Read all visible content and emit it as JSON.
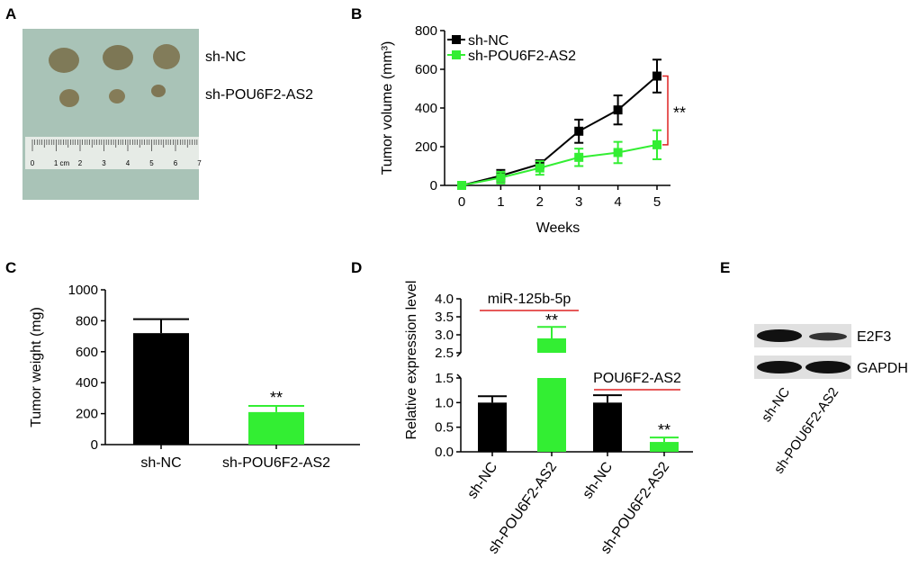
{
  "colors": {
    "black": "#000000",
    "green": "#33ee33",
    "red": "#dd2222",
    "photo_bg": "#a8c4b8"
  },
  "panels": {
    "A": {
      "letter": "A",
      "labels": [
        "sh-NC",
        "sh-POU6F2-AS2"
      ],
      "ruler_numbers": [
        "0",
        "1 cm",
        "2",
        "3",
        "4",
        "5",
        "6",
        "7"
      ]
    },
    "E": {
      "letter": "E",
      "bands": [
        "E2F3",
        "GAPDH"
      ],
      "lanes": [
        "sh-NC",
        "sh-POU6F2-AS2"
      ]
    }
  },
  "chart_data": [
    {
      "panel": "B",
      "type": "line",
      "xlabel": "Weeks",
      "ylabel": "Tumor volume (mm³)",
      "x": [
        0,
        1,
        2,
        3,
        4,
        5
      ],
      "xticks": [
        "0",
        "1",
        "2",
        "3",
        "4",
        "5"
      ],
      "ylim": [
        0,
        800
      ],
      "yticks": [
        "0",
        "200",
        "400",
        "600",
        "800"
      ],
      "legend_position": "top-left",
      "series": [
        {
          "name": "sh-NC",
          "color": "#000000",
          "marker": "square",
          "values": [
            0,
            50,
            110,
            280,
            390,
            565
          ],
          "errors": [
            0,
            30,
            20,
            60,
            75,
            85
          ]
        },
        {
          "name": "sh-POU6F2-AS2",
          "color": "#33ee33",
          "marker": "square",
          "values": [
            0,
            40,
            90,
            145,
            170,
            210
          ],
          "errors": [
            0,
            30,
            35,
            45,
            55,
            75
          ]
        }
      ],
      "significance": "**"
    },
    {
      "panel": "C",
      "type": "bar",
      "ylabel": "Tumor weight (mg)",
      "categories": [
        "sh-NC",
        "sh-POU6F2-AS2"
      ],
      "values": [
        720,
        210
      ],
      "errors": [
        90,
        40
      ],
      "colors": [
        "#000000",
        "#33ee33"
      ],
      "ylim": [
        0,
        1000
      ],
      "yticks": [
        "0",
        "200",
        "400",
        "600",
        "800",
        "1000"
      ],
      "significance": "**"
    },
    {
      "panel": "D",
      "type": "bar",
      "ylabel": "Relative expression level",
      "categories": [
        "sh-NC",
        "sh-POU6F2-AS2",
        "sh-NC",
        "sh-POU6F2-AS2"
      ],
      "values": [
        1.0,
        2.9,
        1.0,
        0.2
      ],
      "errors": [
        0.13,
        0.32,
        0.15,
        0.09
      ],
      "colors": [
        "#000000",
        "#33ee33",
        "#000000",
        "#33ee33"
      ],
      "groups": [
        "miR-125b-5p",
        "POU6F2-AS2"
      ],
      "ylim": [
        0,
        4.0
      ],
      "axis_break": [
        1.5,
        2.5
      ],
      "yticks_lower": [
        "0.0",
        "0.5",
        "1.0",
        "1.5"
      ],
      "yticks_upper": [
        "2.5",
        "3.0",
        "3.5",
        "4.0"
      ],
      "significance": "**"
    }
  ]
}
